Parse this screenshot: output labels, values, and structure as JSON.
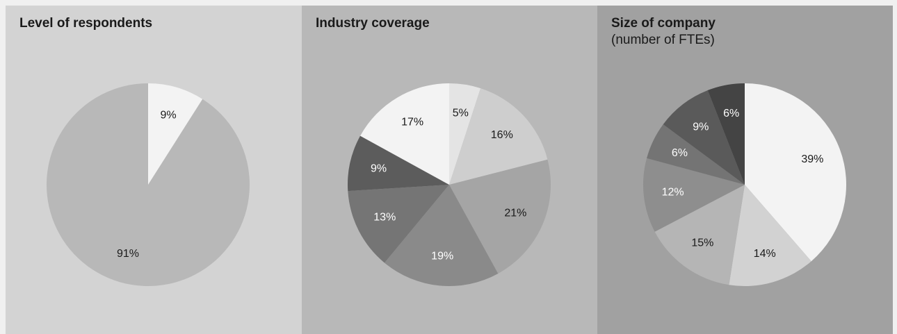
{
  "chart_data": [
    {
      "type": "pie",
      "title": "Level of respondents",
      "subtitle": "",
      "slices": [
        {
          "label": "9%",
          "value": 9,
          "color": "#f3f3f3",
          "text_color": "#1a1a1a"
        },
        {
          "label": "91%",
          "value": 91,
          "color": "#b8b8b8",
          "text_color": "#1a1a1a"
        }
      ]
    },
    {
      "type": "pie",
      "title": "Industry coverage",
      "subtitle": "",
      "slices": [
        {
          "label": "5%",
          "value": 5,
          "color": "#e4e4e4",
          "text_color": "#1a1a1a"
        },
        {
          "label": "16%",
          "value": 16,
          "color": "#cecece",
          "text_color": "#1a1a1a"
        },
        {
          "label": "21%",
          "value": 21,
          "color": "#a5a5a5",
          "text_color": "#1a1a1a"
        },
        {
          "label": "19%",
          "value": 19,
          "color": "#8a8a8a",
          "text_color": "#ffffff"
        },
        {
          "label": "13%",
          "value": 13,
          "color": "#757575",
          "text_color": "#ffffff"
        },
        {
          "label": "9%",
          "value": 9,
          "color": "#5c5c5c",
          "text_color": "#ffffff"
        },
        {
          "label": "17%",
          "value": 17,
          "color": "#f3f3f3",
          "text_color": "#1a1a1a"
        }
      ]
    },
    {
      "type": "pie",
      "title": "Size of company",
      "subtitle": "(number of FTEs)",
      "slices": [
        {
          "label": "39%",
          "value": 39,
          "color": "#f3f3f3",
          "text_color": "#1a1a1a"
        },
        {
          "label": "14%",
          "value": 14,
          "color": "#d2d2d2",
          "text_color": "#1a1a1a"
        },
        {
          "label": "15%",
          "value": 15,
          "color": "#b5b5b5",
          "text_color": "#1a1a1a"
        },
        {
          "label": "12%",
          "value": 12,
          "color": "#8e8e8e",
          "text_color": "#ffffff"
        },
        {
          "label": "6%",
          "value": 6,
          "color": "#747474",
          "text_color": "#ffffff"
        },
        {
          "label": "9%",
          "value": 9,
          "color": "#5a5a5a",
          "text_color": "#ffffff"
        },
        {
          "label": "6%",
          "value": 6,
          "color": "#444444",
          "text_color": "#ffffff"
        }
      ]
    }
  ]
}
